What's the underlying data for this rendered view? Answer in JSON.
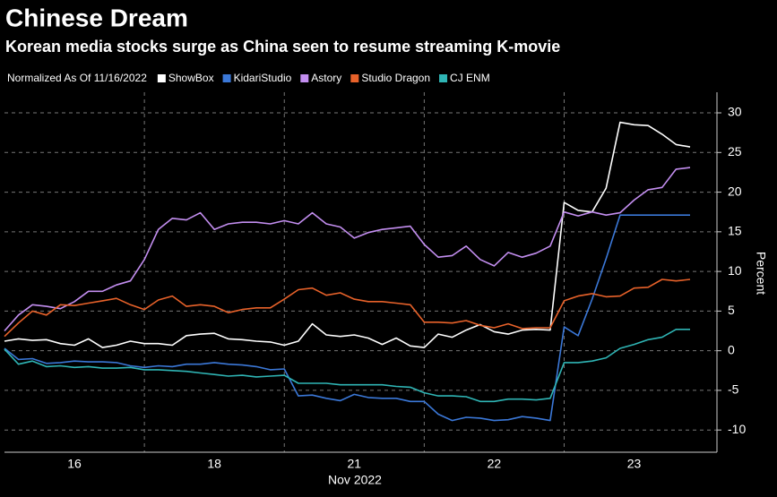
{
  "chart_data": {
    "type": "line",
    "title": "Chinese Dream",
    "subtitle": "Korean media stocks surge as China seen to resume streaming K-movie",
    "legend_title": "Normalized As Of 11/16/2022",
    "y_label": "Percent",
    "x_axis_label": "Nov 2022",
    "categories": [
      null,
      null,
      null,
      null,
      null,
      "16",
      null,
      null,
      null,
      null,
      null,
      null,
      null,
      null,
      null,
      "18",
      null,
      null,
      null,
      null,
      null,
      null,
      null,
      null,
      null,
      "21",
      null,
      null,
      null,
      null,
      null,
      null,
      null,
      null,
      null,
      "22",
      null,
      null,
      null,
      null,
      null,
      null,
      null,
      null,
      null,
      "23",
      null,
      null,
      null,
      null
    ],
    "series": [
      {
        "name": "ShowBox",
        "color": "#ffffff",
        "values": [
          1.2,
          1.5,
          1.3,
          1.4,
          0.9,
          0.7,
          1.5,
          0.4,
          0.7,
          1.2,
          0.9,
          0.9,
          0.7,
          1.9,
          2.1,
          2.2,
          1.5,
          1.4,
          1.2,
          1.1,
          0.7,
          1.2,
          3.4,
          2.0,
          1.8,
          2.0,
          1.6,
          0.8,
          1.6,
          0.6,
          0.4,
          2.1,
          1.7,
          2.6,
          3.3,
          2.4,
          2.1,
          2.6,
          2.7,
          2.6,
          18.7,
          17.7,
          17.5,
          20.5,
          28.8,
          28.5,
          28.4,
          27.3,
          26.0,
          25.7
        ]
      },
      {
        "name": "KidariStudio",
        "color": "#3b78d8",
        "values": [
          0.3,
          -1.1,
          -1.0,
          -1.6,
          -1.5,
          -1.3,
          -1.4,
          -1.4,
          -1.5,
          -1.9,
          -2.1,
          -1.9,
          -2.0,
          -1.7,
          -1.7,
          -1.5,
          -1.7,
          -1.8,
          -2.0,
          -2.4,
          -2.3,
          -5.7,
          -5.6,
          -6.0,
          -6.3,
          -5.5,
          -5.9,
          -6.0,
          -6.0,
          -6.4,
          -6.4,
          -8.0,
          -8.8,
          -8.4,
          -8.5,
          -8.8,
          -8.7,
          -8.3,
          -8.5,
          -8.8,
          3.0,
          1.9,
          6.5,
          11.6,
          17.1,
          17.1,
          17.1,
          17.1,
          17.1,
          17.1
        ]
      },
      {
        "name": "Astory",
        "color": "#c38ef0",
        "values": [
          2.5,
          4.5,
          5.8,
          5.6,
          5.3,
          6.2,
          7.5,
          7.5,
          8.3,
          8.8,
          11.5,
          15.3,
          16.7,
          16.5,
          17.4,
          15.3,
          16.0,
          16.2,
          16.2,
          16.0,
          16.4,
          16.0,
          17.4,
          16.0,
          15.6,
          14.2,
          14.9,
          15.3,
          15.5,
          15.7,
          13.4,
          11.8,
          12.0,
          13.2,
          11.5,
          10.7,
          12.4,
          11.8,
          12.3,
          13.2,
          17.5,
          17.0,
          17.5,
          17.1,
          17.4,
          19.0,
          20.3,
          20.6,
          22.9,
          23.1
        ]
      },
      {
        "name": "Studio Dragon",
        "color": "#e8622a",
        "values": [
          1.8,
          3.5,
          5.0,
          4.5,
          5.8,
          5.7,
          6.0,
          6.3,
          6.6,
          5.8,
          5.2,
          6.4,
          6.9,
          5.6,
          5.8,
          5.6,
          4.8,
          5.2,
          5.4,
          5.4,
          6.5,
          7.7,
          7.9,
          7.0,
          7.3,
          6.5,
          6.2,
          6.2,
          6.0,
          5.8,
          3.6,
          3.6,
          3.5,
          3.8,
          3.2,
          2.9,
          3.4,
          2.8,
          2.9,
          2.9,
          6.3,
          6.9,
          7.2,
          6.8,
          6.9,
          7.9,
          8.0,
          9.0,
          8.8,
          9.0
        ]
      },
      {
        "name": "CJ ENM",
        "color": "#2fb5b5",
        "values": [
          0.2,
          -1.7,
          -1.3,
          -2.0,
          -1.9,
          -2.1,
          -2.0,
          -2.2,
          -2.2,
          -2.1,
          -2.4,
          -2.4,
          -2.5,
          -2.6,
          -2.8,
          -3.0,
          -3.2,
          -3.1,
          -3.3,
          -3.2,
          -3.1,
          -4.1,
          -4.1,
          -4.1,
          -4.3,
          -4.3,
          -4.3,
          -4.3,
          -4.5,
          -4.6,
          -5.3,
          -5.7,
          -5.7,
          -5.8,
          -6.4,
          -6.4,
          -6.1,
          -6.1,
          -6.2,
          -6.0,
          -1.5,
          -1.5,
          -1.3,
          -0.9,
          0.3,
          0.8,
          1.4,
          1.7,
          2.7,
          2.7
        ]
      }
    ],
    "ylim": [
      -12.8,
      32.6
    ],
    "yticks": [
      -10,
      -5,
      0,
      5,
      10,
      15,
      20,
      25,
      30
    ],
    "grid": true
  }
}
